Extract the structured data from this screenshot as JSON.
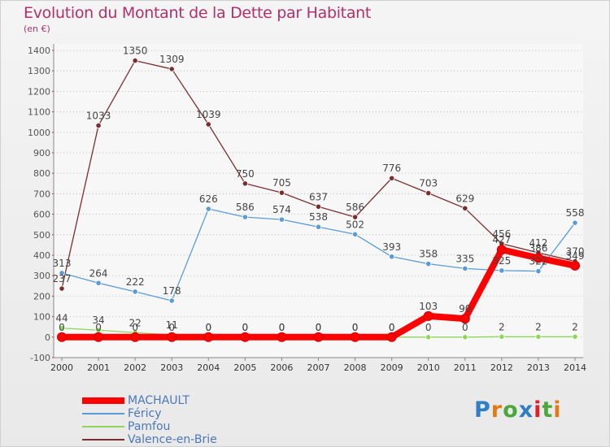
{
  "title": "Evolution du Montant de la Dette par Habitant",
  "subtitle": "(en €)",
  "logo": {
    "text": "Proxiti",
    "letter_colors": [
      "#2f7fc4",
      "#e07b18",
      "#4aa83c",
      "#2f7fc4",
      "#e0202a",
      "#4aa83c",
      "#e07b18"
    ]
  },
  "chart_data": {
    "type": "line",
    "title": "Evolution du Montant de la Dette par Habitant",
    "subtitle": "(en €)",
    "xlabel": "",
    "ylabel": "",
    "x": [
      2000,
      2001,
      2002,
      2003,
      2004,
      2005,
      2006,
      2007,
      2008,
      2009,
      2010,
      2011,
      2012,
      2013,
      2014
    ],
    "ylim": [
      -100,
      1400
    ],
    "yticks": [
      -100,
      0,
      100,
      200,
      300,
      400,
      500,
      600,
      700,
      800,
      900,
      1000,
      1100,
      1200,
      1300,
      1400
    ],
    "grid": "horizontal dotted",
    "legend_position": "bottom-left",
    "series": [
      {
        "name": "MACHAULT",
        "color": "#ff0000",
        "width": 8,
        "values": [
          0,
          0,
          0,
          0,
          0,
          0,
          0,
          0,
          0,
          0,
          103,
          90,
          427,
          386,
          349
        ],
        "labels": [
          "0",
          "0",
          "0",
          "0",
          "0",
          "0",
          "0",
          "0",
          "0",
          "0",
          "103",
          "90",
          "427",
          "386",
          "349"
        ]
      },
      {
        "name": "Féricy",
        "color": "#5b9bd5",
        "width": 1.3,
        "values": [
          313,
          264,
          222,
          178,
          626,
          586,
          574,
          538,
          502,
          393,
          358,
          335,
          325,
          322,
          558
        ],
        "labels": [
          "313",
          "264",
          "222",
          "178",
          "626",
          "586",
          "574",
          "538",
          "502",
          "393",
          "358",
          "335",
          "325",
          "322",
          "558"
        ]
      },
      {
        "name": "Pamfou",
        "color": "#8ed65a",
        "width": 1.3,
        "values": [
          44,
          34,
          22,
          11,
          0,
          0,
          0,
          0,
          0,
          0,
          0,
          0,
          2,
          2,
          2
        ],
        "labels": [
          "44",
          "34",
          "22",
          "11",
          "0",
          "0",
          "0",
          "0",
          "0",
          "0",
          "0",
          "0",
          "2",
          "2",
          "2"
        ]
      },
      {
        "name": "Valence-en-Brie",
        "color": "#7a2f2f",
        "width": 1.3,
        "values": [
          237,
          1033,
          1350,
          1309,
          1039,
          750,
          705,
          637,
          586,
          776,
          703,
          629,
          456,
          412,
          370
        ],
        "labels": [
          "237",
          "1033",
          "1350",
          "1309",
          "1039",
          "750",
          "705",
          "637",
          "586",
          "776",
          "703",
          "629",
          "456",
          "412",
          "370"
        ]
      }
    ]
  }
}
